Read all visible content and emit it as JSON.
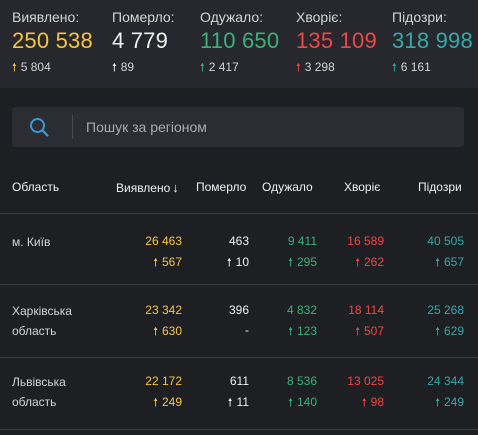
{
  "colors": {
    "detected": "#f5c445",
    "deaths": "#f0f0f0",
    "recovered": "#3ab27b",
    "sick": "#ef4747",
    "suspected": "#38a8a8"
  },
  "summary": {
    "detected": {
      "label": "Виявлено:",
      "value": "250 538",
      "delta": "5 804"
    },
    "deaths": {
      "label": "Померло:",
      "value": "4 779",
      "delta": "89"
    },
    "recovered": {
      "label": "Одужало:",
      "value": "110 650",
      "delta": "2 417"
    },
    "sick": {
      "label": "Хворіє:",
      "value": "135 109",
      "delta": "3 298"
    },
    "suspected": {
      "label": "Підозри:",
      "value": "318 998",
      "delta": "6 161"
    }
  },
  "search": {
    "placeholder": "Пошук за регіоном",
    "icon": "search-icon"
  },
  "table": {
    "headers": {
      "region": "Область",
      "detected": "Виявлено",
      "deaths": "Померло",
      "recovered": "Одужало",
      "sick": "Хворіє",
      "suspected": "Підозри"
    },
    "sort_indicator": "↓",
    "rows": [
      {
        "region": "м. Київ",
        "detected": "26 463",
        "detected_delta": "567",
        "deaths": "463",
        "deaths_delta": "10",
        "recovered": "9 411",
        "recovered_delta": "295",
        "sick": "16 589",
        "sick_delta": "262",
        "suspected": "40 505",
        "suspected_delta": "657"
      },
      {
        "region": "Харківська область",
        "detected": "23 342",
        "detected_delta": "630",
        "deaths": "396",
        "deaths_delta": "-",
        "recovered": "4 832",
        "recovered_delta": "123",
        "sick": "18 114",
        "sick_delta": "507",
        "suspected": "25 268",
        "suspected_delta": "629"
      },
      {
        "region": "Львівська область",
        "detected": "22 172",
        "detected_delta": "249",
        "deaths": "611",
        "deaths_delta": "11",
        "recovered": "8 536",
        "recovered_delta": "140",
        "sick": "13 025",
        "sick_delta": "98",
        "suspected": "24 344",
        "suspected_delta": "249"
      }
    ]
  }
}
